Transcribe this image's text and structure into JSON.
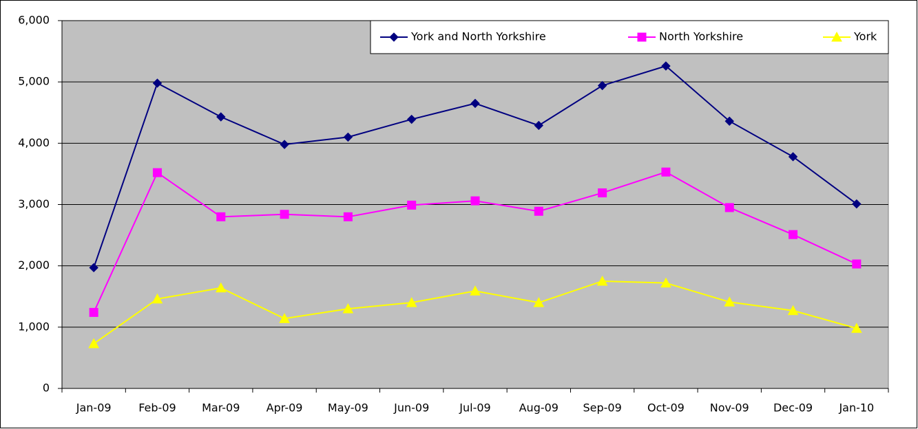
{
  "chart_data": {
    "type": "line",
    "categories": [
      "Jan-09",
      "Feb-09",
      "Mar-09",
      "Apr-09",
      "May-09",
      "Jun-09",
      "Jul-09",
      "Aug-09",
      "Sep-09",
      "Oct-09",
      "Nov-09",
      "Dec-09",
      "Jan-10"
    ],
    "series": [
      {
        "name": "York and North Yorkshire",
        "color": "#000080",
        "marker": "diamond",
        "values": [
          1970,
          4980,
          4430,
          3980,
          4100,
          4390,
          4650,
          4290,
          4940,
          5260,
          4360,
          3780,
          3010
        ]
      },
      {
        "name": "North Yorkshire",
        "color": "#ff00ff",
        "marker": "square",
        "values": [
          1240,
          3520,
          2800,
          2840,
          2800,
          2990,
          3060,
          2890,
          3190,
          3530,
          2950,
          2510,
          2030
        ]
      },
      {
        "name": "York",
        "color": "#ffff00",
        "marker": "triangle",
        "values": [
          730,
          1460,
          1640,
          1140,
          1300,
          1400,
          1590,
          1400,
          1750,
          1720,
          1410,
          1270,
          980
        ]
      }
    ],
    "ylim": [
      0,
      6000
    ],
    "yticks": [
      0,
      {
        "value": 1000,
        "label": "1,000"
      },
      {
        "value": 2000,
        "label": "2,000"
      },
      {
        "value": 3000,
        "label": "3,000"
      },
      {
        "value": 4000,
        "label": "4,000"
      },
      {
        "value": 5000,
        "label": "5,000"
      },
      {
        "value": 6000,
        "label": "6,000"
      }
    ],
    "grid": true,
    "legend": "upper right",
    "plot_background": "#c0c0c0"
  }
}
